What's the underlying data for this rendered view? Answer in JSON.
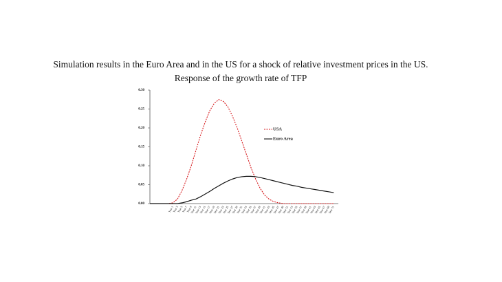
{
  "chart_data": {
    "type": "line",
    "title": "Simulation results in the Euro Area and in the US for a shock of relative investment prices in the US.",
    "subtitle": "Response of the growth rate of TFP",
    "categories": [
      null,
      null,
      null,
      null,
      null,
      "Year 1",
      "Year 3",
      "Year 5",
      "Year 7",
      "Year 9",
      "Year 11",
      "Year 13",
      "Year 15",
      "Year 17",
      "Year 19",
      "Year 21",
      "Year 23",
      "Year 25",
      "Year 27",
      "Year 29",
      "Year 31",
      "Year 33",
      "Year 35",
      "Year 37",
      "Year 39",
      "Year 41",
      "Year 43",
      "Year 45",
      "Year 47",
      "Year 49",
      "Year 51",
      "Year 53",
      "Year 55",
      "Year 57",
      "Year 59",
      "Year 61",
      "Year 63",
      "Year 65",
      "Year 67",
      "Year 69",
      "Year 71"
    ],
    "series": [
      {
        "name": "USA",
        "color": "#d7191c",
        "dash": true,
        "values": [
          0,
          0,
          0,
          0,
          0,
          0.002,
          0.012,
          0.035,
          0.065,
          0.1,
          0.14,
          0.18,
          0.215,
          0.245,
          0.265,
          0.275,
          0.27,
          0.255,
          0.23,
          0.2,
          0.165,
          0.13,
          0.095,
          0.065,
          0.04,
          0.022,
          0.011,
          0.005,
          0.002,
          0,
          0,
          0,
          0,
          0,
          0,
          0,
          0,
          0,
          0,
          0,
          0
        ]
      },
      {
        "name": "Euro Area",
        "color": "#111111",
        "dash": false,
        "values": [
          0,
          0,
          0,
          0,
          0,
          0,
          0,
          0.002,
          0.005,
          0.009,
          0.012,
          0.018,
          0.025,
          0.032,
          0.04,
          0.047,
          0.054,
          0.06,
          0.065,
          0.069,
          0.071,
          0.072,
          0.072,
          0.071,
          0.069,
          0.066,
          0.063,
          0.06,
          0.057,
          0.054,
          0.051,
          0.048,
          0.046,
          0.043,
          0.041,
          0.039,
          0.037,
          0.035,
          0.033,
          0.031,
          0.029
        ]
      }
    ],
    "ylim": [
      0,
      0.3
    ],
    "yticks": [
      {
        "value": 0,
        "label": "0.00"
      },
      {
        "value": 0.05,
        "label": "0.05"
      },
      {
        "value": 0.1,
        "label": "0.10"
      },
      {
        "value": 0.15,
        "label": "0.15"
      },
      {
        "value": 0.2,
        "label": "0.20"
      },
      {
        "value": 0.25,
        "label": "0.25"
      },
      {
        "value": 0.3,
        "label": "0.30"
      }
    ],
    "grid": false
  }
}
